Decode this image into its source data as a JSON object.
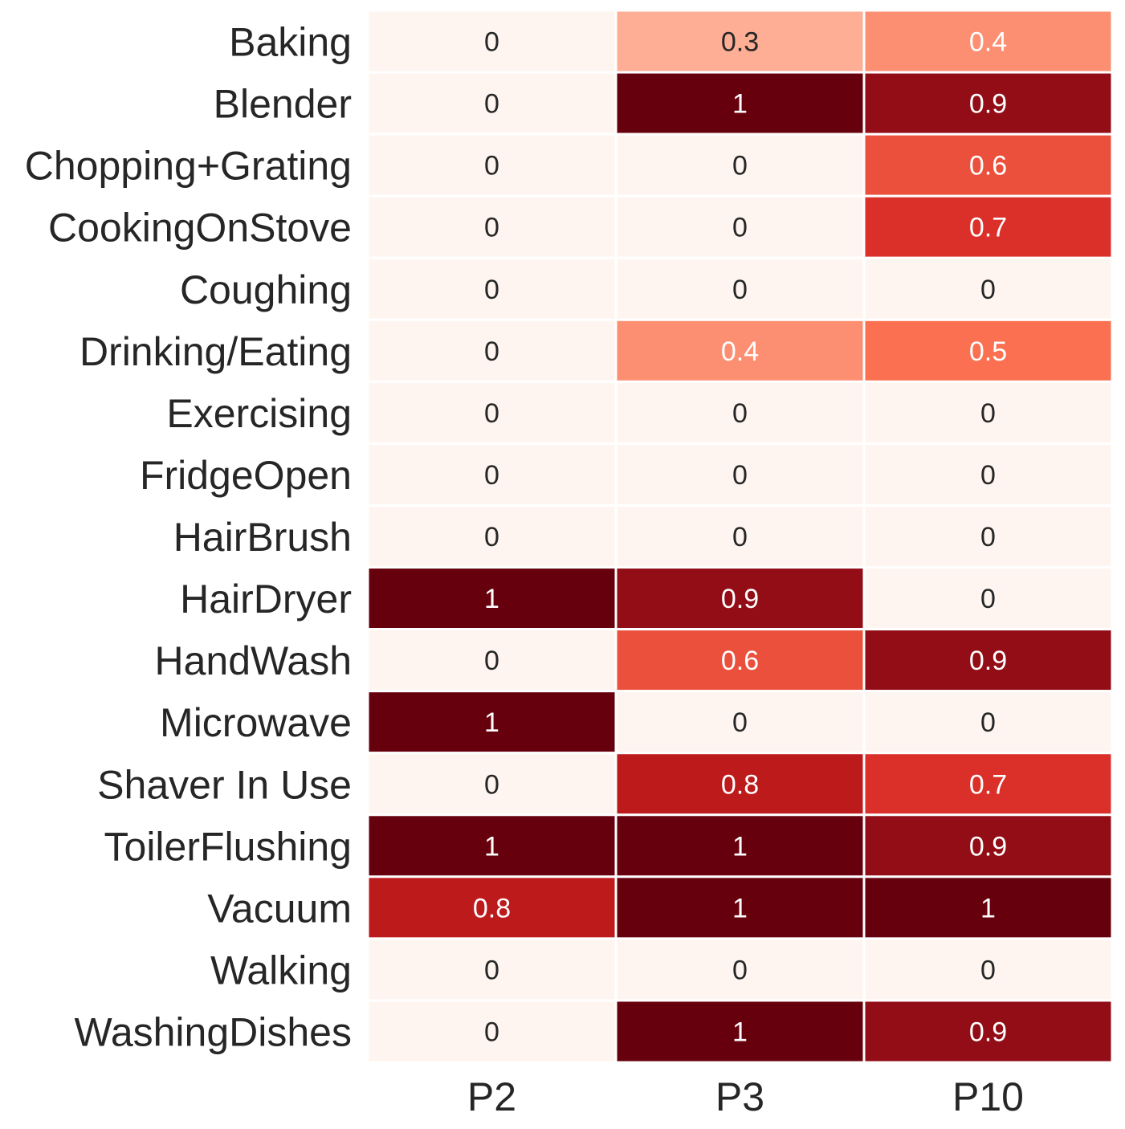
{
  "chart_data": {
    "type": "heatmap",
    "colormap": [
      "#fff5f0",
      "#fdbea5",
      "#fb7050",
      "#d32020",
      "#67000d"
    ],
    "value_range": [
      0,
      1
    ],
    "columns": [
      "P2",
      "P3",
      "P10"
    ],
    "rows": [
      "Baking",
      "Blender",
      "Chopping+Grating",
      "CookingOnStove",
      "Coughing",
      "Drinking/Eating",
      "Exercising",
      "FridgeOpen",
      "HairBrush",
      "HairDryer",
      "HandWash",
      "Microwave",
      "Shaver In Use",
      "ToilerFlushing",
      "Vacuum",
      "Walking",
      "WashingDishes"
    ],
    "values": [
      [
        0,
        0.3,
        0.4
      ],
      [
        0,
        1,
        0.9
      ],
      [
        0,
        0,
        0.6
      ],
      [
        0,
        0,
        0.7
      ],
      [
        0,
        0,
        0
      ],
      [
        0,
        0.4,
        0.5
      ],
      [
        0,
        0,
        0
      ],
      [
        0,
        0,
        0
      ],
      [
        0,
        0,
        0
      ],
      [
        1,
        0.9,
        0
      ],
      [
        0,
        0.6,
        0.9
      ],
      [
        1,
        0,
        0
      ],
      [
        0,
        0.8,
        0.7
      ],
      [
        1,
        1,
        0.9
      ],
      [
        0.8,
        1,
        1
      ],
      [
        0,
        0,
        0
      ],
      [
        0,
        1,
        0.9
      ]
    ],
    "text_color_light": "#ffffff",
    "text_color_dark": "#262626"
  }
}
